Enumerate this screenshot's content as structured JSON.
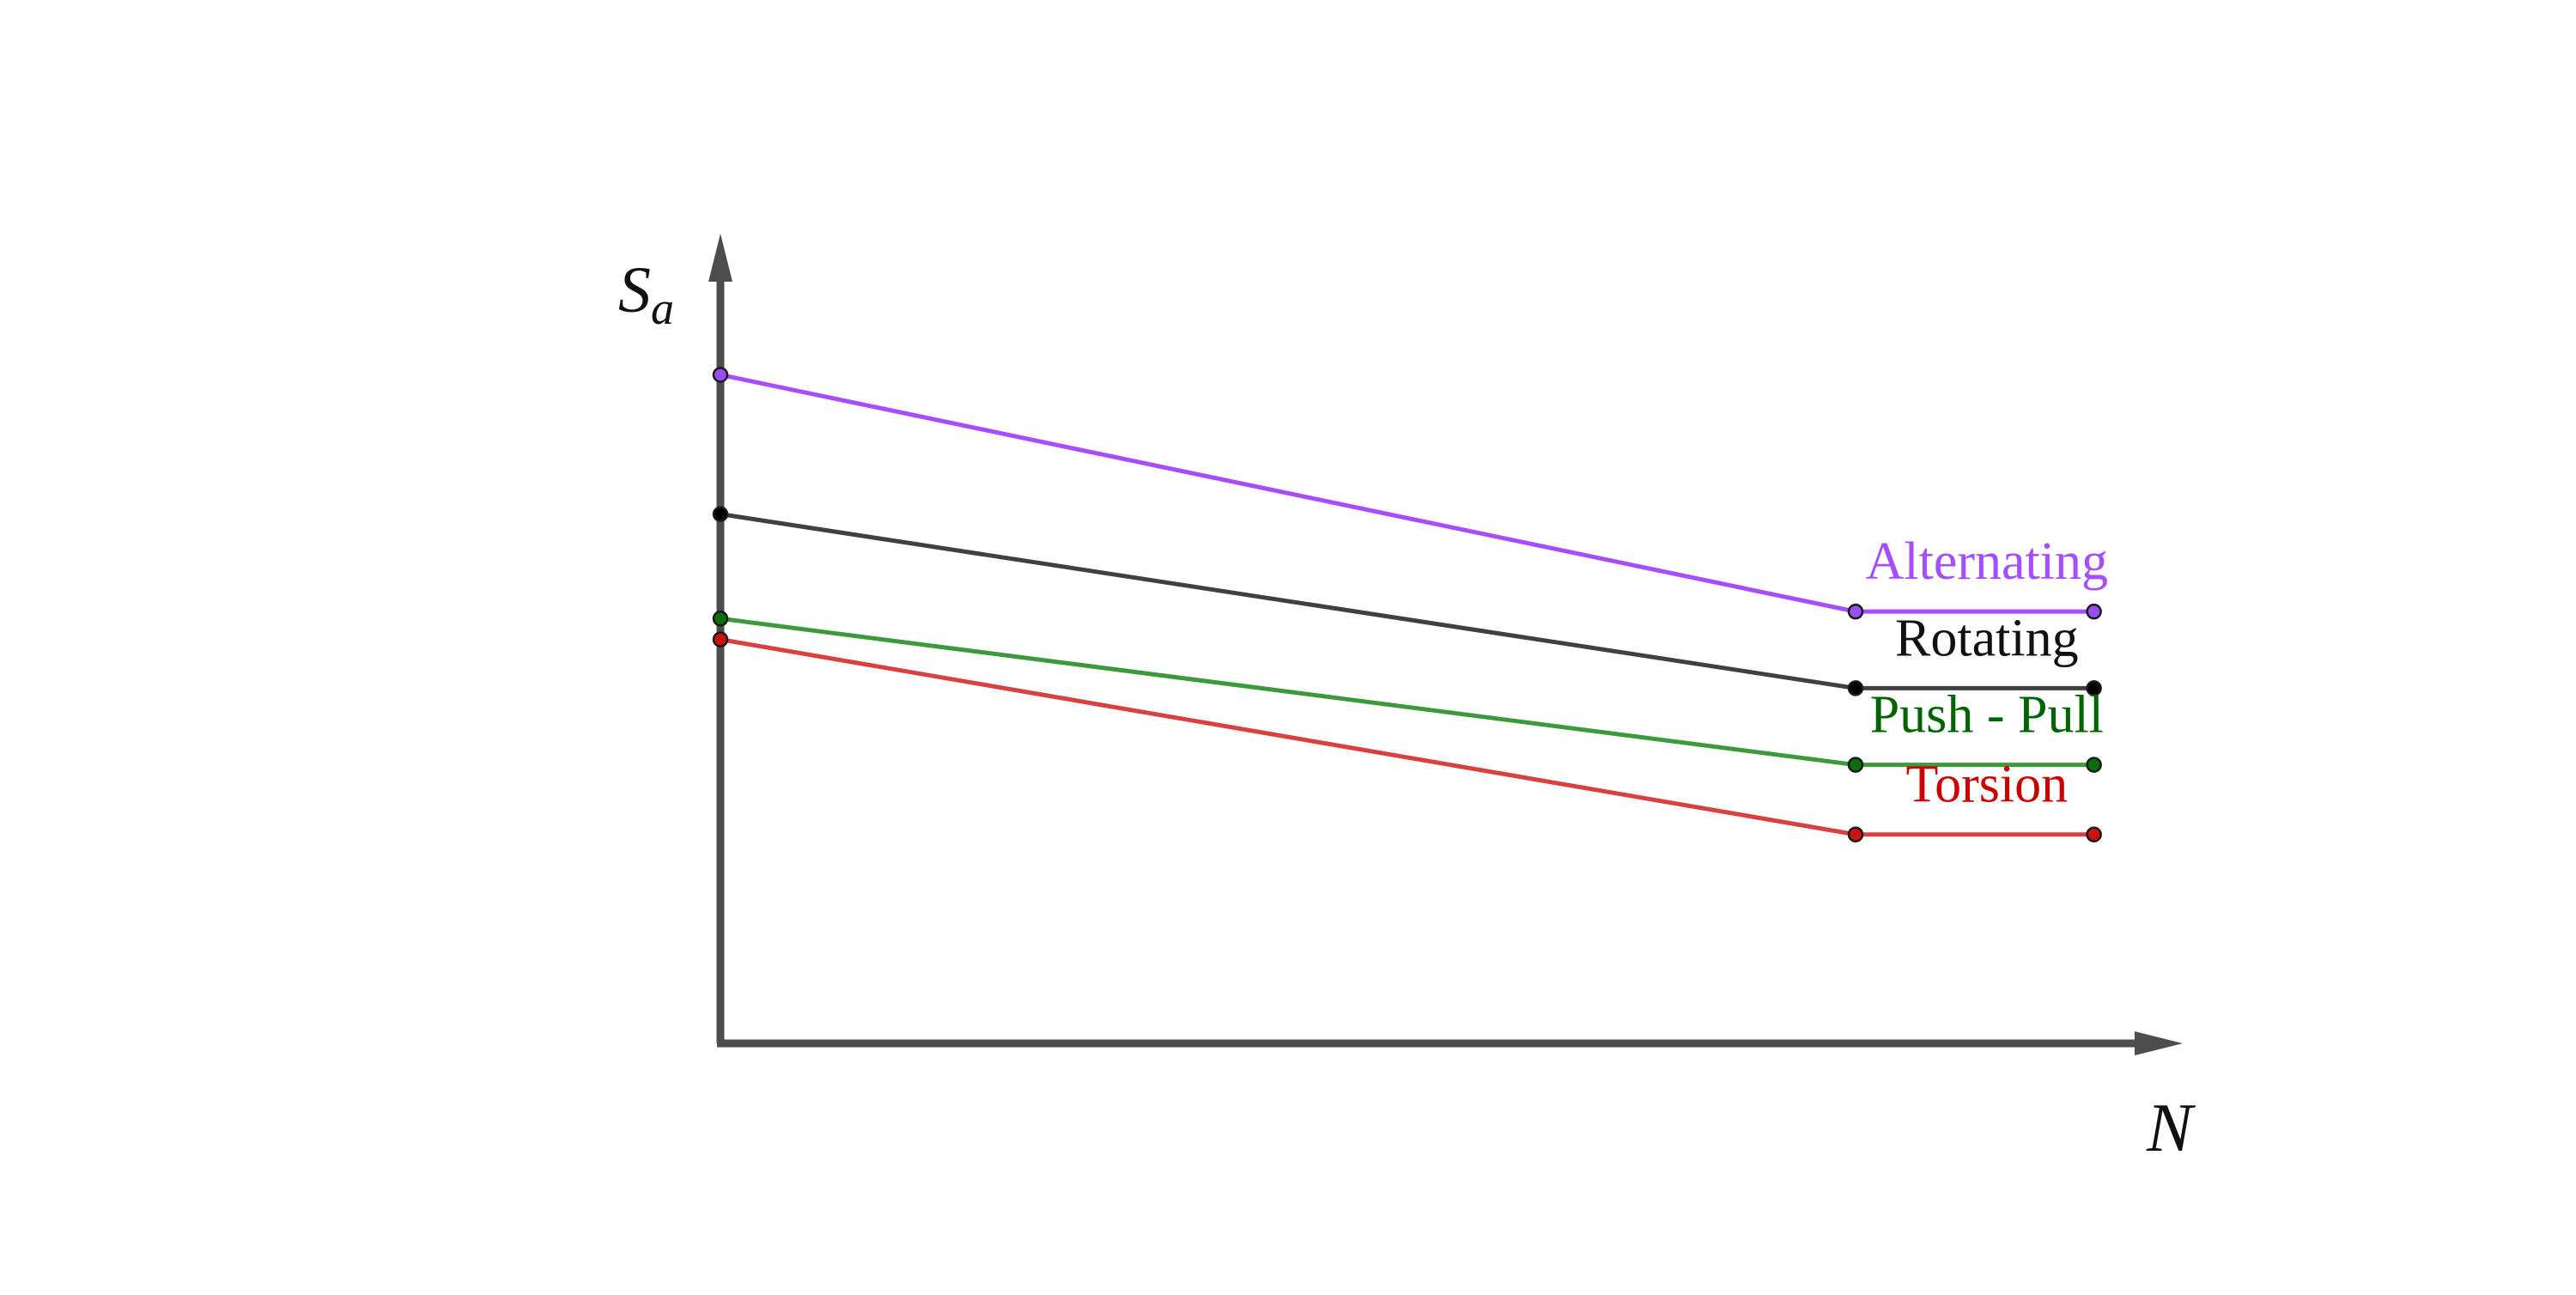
{
  "chart_data": {
    "type": "line",
    "title": "",
    "xlabel": "N",
    "ylabel": "S",
    "ylabel_subscript": "a",
    "xlim": [
      0,
      1.32
    ],
    "ylim": [
      0,
      1.09
    ],
    "grid": false,
    "series": [
      {
        "name": "Alternating",
        "color": "#a64dff",
        "marker_color": "#9a4ef0",
        "label_color": "#a64dff",
        "points": [
          [
            0,
            0.96
          ],
          [
            1.0,
            0.62
          ],
          [
            1.21,
            0.62
          ]
        ]
      },
      {
        "name": "Rotating",
        "color": "#404040",
        "marker_color": "#000000",
        "label_color": "#111111",
        "points": [
          [
            0,
            0.76
          ],
          [
            1.0,
            0.51
          ],
          [
            1.21,
            0.51
          ]
        ]
      },
      {
        "name": "Push - Pull",
        "color": "#3c9a3c",
        "marker_color": "#0a6e0a",
        "label_color": "#006400",
        "points": [
          [
            0,
            0.61
          ],
          [
            1.0,
            0.4
          ],
          [
            1.21,
            0.4
          ]
        ]
      },
      {
        "name": "Torsion",
        "color": "#d94040",
        "marker_color": "#cc1111",
        "label_color": "#cc0000",
        "points": [
          [
            0,
            0.58
          ],
          [
            1.0,
            0.3
          ],
          [
            1.21,
            0.3
          ]
        ]
      }
    ]
  }
}
